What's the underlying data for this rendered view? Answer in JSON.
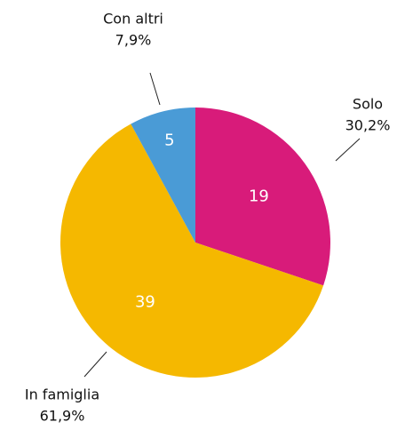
{
  "chart_data": {
    "type": "pie",
    "categories": [
      "Solo",
      "In famiglia",
      "Con altri"
    ],
    "values": [
      19,
      39,
      5
    ],
    "percent_values": [
      30.2,
      61.9,
      7.9
    ],
    "percent_labels": [
      "30,2%",
      "61,9%",
      "7,9%"
    ],
    "colors": [
      "#d81b7a",
      "#f5b800",
      "#4a9bd6"
    ]
  }
}
